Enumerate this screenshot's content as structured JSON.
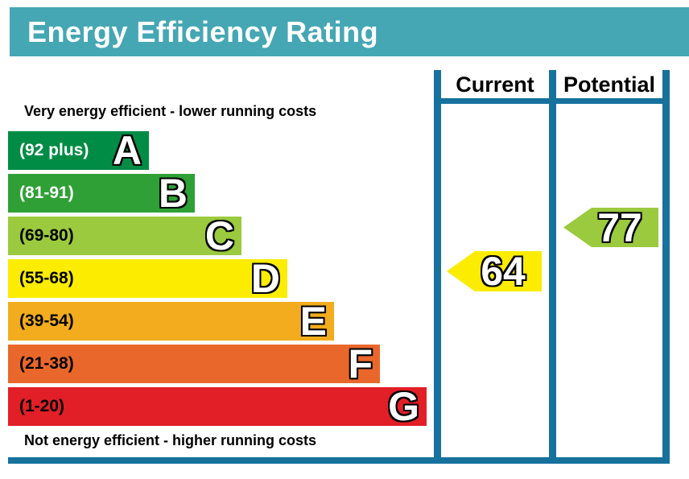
{
  "header": {
    "title": "Energy Efficiency Rating"
  },
  "colors": {
    "header_bg": "#45A7B3",
    "header_text": "#FFFFFF",
    "table_border": "#16719D",
    "page_bg": "#FFFFFF"
  },
  "captions": {
    "top": "Very energy efficient - lower running costs",
    "bottom": "Not energy efficient - higher running costs"
  },
  "columns": {
    "current": "Current",
    "potential": "Potential"
  },
  "bands": [
    {
      "letter": "A",
      "range": "(92 plus)",
      "color": "#008C45",
      "text_color": "#FFFFFF"
    },
    {
      "letter": "B",
      "range": "(81-91)",
      "color": "#2FA036",
      "text_color": "#FFFFFF"
    },
    {
      "letter": "C",
      "range": "(69-80)",
      "color": "#9BCA3E",
      "text_color": "#000000"
    },
    {
      "letter": "D",
      "range": "(55-68)",
      "color": "#FBEC00",
      "text_color": "#000000"
    },
    {
      "letter": "E",
      "range": "(39-54)",
      "color": "#F2AC1D",
      "text_color": "#000000"
    },
    {
      "letter": "F",
      "range": "(21-38)",
      "color": "#E9672B",
      "text_color": "#000000"
    },
    {
      "letter": "G",
      "range": "(1-20)",
      "color": "#E21E26",
      "text_color": "#000000"
    }
  ],
  "ratings": {
    "current": {
      "value": "64",
      "color": "#FBEC00",
      "band": "D"
    },
    "potential": {
      "value": "77",
      "color": "#9BCA3E",
      "band": "C"
    }
  },
  "chart_data": {
    "type": "bar",
    "title": "Energy Efficiency Rating",
    "categories": [
      "A",
      "B",
      "C",
      "D",
      "E",
      "F",
      "G"
    ],
    "band_ranges": [
      "92 plus",
      "81-91",
      "69-80",
      "55-68",
      "39-54",
      "21-38",
      "1-20"
    ],
    "band_colors": [
      "#008C45",
      "#2FA036",
      "#9BCA3E",
      "#FBEC00",
      "#F2AC1D",
      "#E9672B",
      "#E21E26"
    ],
    "scale": [
      1,
      100
    ],
    "series": [
      {
        "name": "Current",
        "value": 64,
        "band": "D",
        "color": "#FBEC00"
      },
      {
        "name": "Potential",
        "value": 77,
        "band": "C",
        "color": "#9BCA3E"
      }
    ],
    "annotations": [
      "Very energy efficient - lower running costs",
      "Not energy efficient - higher running costs"
    ],
    "legend_position": "column headers top right",
    "grid": false
  }
}
